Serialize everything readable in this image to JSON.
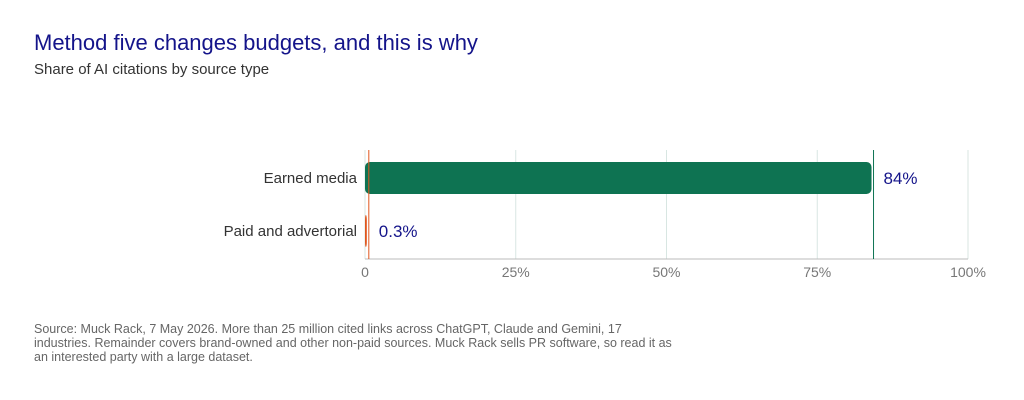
{
  "title": "Method five changes budgets, and this is why",
  "subtitle": "Share of AI citations by source type",
  "source": "Source: Muck Rack, 7 May 2026. More than 25 million cited links across ChatGPT, Claude and Gemini, 17 industries. Remainder covers brand-owned and other non-paid sources. Muck Rack sells PR software, so read it as an interested party with a large dataset.",
  "colors": {
    "earned": "#0e7352",
    "paid": "#e0571f",
    "title": "#14148a",
    "value_label": "#14148a",
    "grid": "#d8e6e2"
  },
  "chart_data": {
    "type": "bar",
    "orientation": "horizontal",
    "categories": [
      "Earned media",
      "Paid and advertorial"
    ],
    "values": [
      84,
      0.3
    ],
    "value_labels": [
      "84%",
      "0.3%"
    ],
    "xlim": [
      0,
      100
    ],
    "xticks": [
      0,
      25,
      50,
      75,
      100
    ],
    "xtick_labels": [
      "0",
      "25%",
      "50%",
      "75%",
      "100%"
    ],
    "grid": true,
    "unit": "%"
  }
}
